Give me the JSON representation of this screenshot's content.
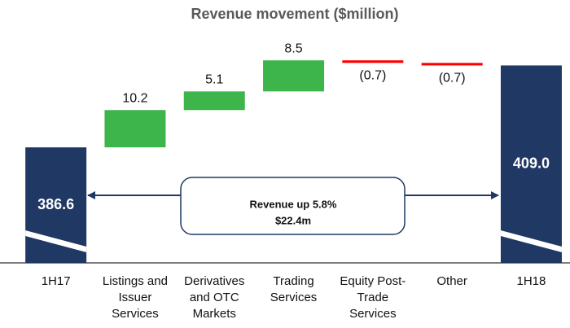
{
  "chart_data": {
    "type": "waterfall",
    "title": "Revenue movement ($million)",
    "categories": [
      "1H17",
      "Listings and Issuer Services",
      "Derivatives and OTC Markets",
      "Trading Services",
      "Equity Post-Trade Services",
      "Other",
      "1H18"
    ],
    "values": [
      386.6,
      10.2,
      5.1,
      8.5,
      -0.7,
      -0.7,
      409.0
    ],
    "value_labels": [
      "386.6",
      "10.2",
      "5.1",
      "8.5",
      "(0.7)",
      "(0.7)",
      "409.0"
    ],
    "colors": {
      "total": "#1f3864",
      "increase": "#3db54a",
      "decrease": "#ff0000"
    },
    "ylim": [
      355,
      418
    ],
    "annotation": [
      "Revenue up 5.8%",
      "$22.4m"
    ]
  }
}
